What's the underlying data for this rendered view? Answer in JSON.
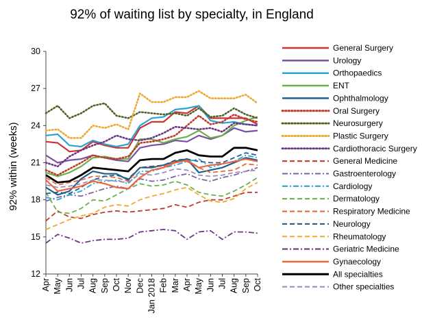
{
  "chart_data": {
    "type": "line",
    "title": "92% of waiting list by specialty, in England",
    "xlabel": "",
    "ylabel": "92% within  (weeks)",
    "ylim": [
      12,
      30
    ],
    "yticks": [
      12,
      15,
      18,
      21,
      24,
      27,
      30
    ],
    "grid": false,
    "legend_position": "right",
    "categories": [
      "Apr",
      "May",
      "Jun",
      "Jul",
      "Aug",
      "Sep",
      "Oct",
      "Nov",
      "Dec",
      "Jan 2018",
      "Feb",
      "Mar",
      "Apr",
      "May",
      "Jun",
      "Jul",
      "Aug",
      "Sep",
      "Oct"
    ],
    "series": [
      {
        "name": "General Surgery",
        "color": "#cc3333",
        "style": "solid",
        "width": 2.2,
        "values": [
          22.7,
          22.6,
          21.9,
          22.0,
          22.7,
          22.4,
          22.2,
          22.2,
          23.8,
          24.3,
          24.3,
          25.1,
          25.0,
          25.6,
          24.6,
          24.6,
          24.6,
          24.6,
          24.1
        ]
      },
      {
        "name": "Urology",
        "color": "#7a4fa0",
        "style": "solid",
        "width": 2.2,
        "values": [
          21.6,
          21.0,
          21.2,
          21.3,
          21.6,
          21.4,
          21.2,
          21.1,
          22.2,
          22.4,
          22.5,
          22.8,
          22.7,
          23.2,
          22.9,
          23.2,
          23.8,
          23.5,
          23.6
        ]
      },
      {
        "name": "Orthopaedics",
        "color": "#29a3d6",
        "style": "solid",
        "width": 2.2,
        "values": [
          23.2,
          23.3,
          22.4,
          22.3,
          22.8,
          22.5,
          22.3,
          22.5,
          24.0,
          24.6,
          24.7,
          25.3,
          25.4,
          25.6,
          24.4,
          24.2,
          24.3,
          24.1,
          24.0
        ]
      },
      {
        "name": "ENT",
        "color": "#6ab04c",
        "style": "solid",
        "width": 2.2,
        "values": [
          20.2,
          19.9,
          20.2,
          20.7,
          21.4,
          21.5,
          21.3,
          21.3,
          22.9,
          22.9,
          22.6,
          22.9,
          23.1,
          23.6,
          23.0,
          23.2,
          24.0,
          24.4,
          24.7
        ]
      },
      {
        "name": "Ophthalmology",
        "color": "#1f5f8b",
        "style": "solid",
        "width": 2.2,
        "values": [
          19.0,
          18.4,
          18.7,
          19.7,
          20.3,
          20.1,
          20.1,
          19.6,
          20.6,
          20.6,
          20.8,
          21.1,
          21.3,
          20.2,
          20.4,
          20.6,
          21.0,
          21.4,
          21.2
        ]
      },
      {
        "name": "Oral Surgery",
        "color": "#c0392b",
        "style": "dot",
        "width": 2.6,
        "values": [
          20.4,
          20.0,
          20.5,
          21.0,
          21.6,
          21.4,
          21.3,
          21.5,
          22.6,
          22.7,
          22.9,
          23.2,
          24.0,
          24.8,
          24.1,
          24.3,
          24.9,
          24.5,
          24.3
        ]
      },
      {
        "name": "Neurosurgery",
        "color": "#4f6228",
        "style": "dot",
        "width": 2.6,
        "values": [
          25.0,
          25.6,
          24.6,
          25.0,
          25.6,
          25.8,
          24.8,
          24.6,
          25.1,
          25.0,
          24.9,
          25.0,
          24.8,
          25.4,
          24.7,
          24.8,
          25.4,
          24.9,
          24.6
        ]
      },
      {
        "name": "Plastic Surgery",
        "color": "#f0a830",
        "style": "dot",
        "width": 2.6,
        "values": [
          23.6,
          23.7,
          23.0,
          23.0,
          24.0,
          23.8,
          24.1,
          23.7,
          26.6,
          25.9,
          25.9,
          26.3,
          26.3,
          26.8,
          26.2,
          26.2,
          26.2,
          26.5,
          25.8
        ]
      },
      {
        "name": "Cardiothoracic Surgery",
        "color": "#6c3483",
        "style": "dot",
        "width": 2.6,
        "values": [
          21.0,
          20.7,
          21.5,
          22.0,
          22.4,
          22.7,
          23.2,
          22.9,
          22.8,
          23.0,
          23.4,
          23.9,
          23.8,
          23.7,
          23.8,
          23.5,
          24.2,
          24.1,
          24.0
        ]
      },
      {
        "name": "General Medicine",
        "color": "#c0392b",
        "style": "dash",
        "width": 1.8,
        "values": [
          16.3,
          17.1,
          16.6,
          16.5,
          16.8,
          17.0,
          17.1,
          17.0,
          17.1,
          17.2,
          17.3,
          17.6,
          17.4,
          17.8,
          18.0,
          18.0,
          18.3,
          18.6,
          18.6
        ]
      },
      {
        "name": "Gastroenterology",
        "color": "#7d5fa5",
        "style": "dashdot",
        "width": 1.8,
        "values": [
          17.9,
          18.2,
          18.4,
          18.3,
          18.6,
          18.9,
          19.1,
          18.9,
          19.7,
          19.5,
          19.6,
          19.9,
          20.1,
          19.7,
          19.5,
          19.8,
          20.0,
          20.3,
          20.6
        ]
      },
      {
        "name": "Cardiology",
        "color": "#29a3d6",
        "style": "dashdot",
        "width": 1.8,
        "values": [
          18.2,
          18.0,
          18.4,
          18.7,
          19.3,
          19.5,
          19.6,
          19.3,
          20.3,
          20.3,
          20.6,
          20.8,
          21.1,
          21.3,
          20.6,
          20.9,
          21.1,
          21.6,
          21.4
        ]
      },
      {
        "name": "Dermatology",
        "color": "#6ab04c",
        "style": "dash",
        "width": 1.8,
        "values": [
          18.6,
          17.0,
          16.9,
          17.3,
          18.0,
          17.9,
          18.4,
          18.9,
          19.3,
          19.1,
          19.2,
          19.5,
          19.2,
          18.6,
          18.4,
          18.3,
          18.7,
          19.2,
          19.8
        ]
      },
      {
        "name": "Respiratory Medicine",
        "color": "#e8673c",
        "style": "dash",
        "width": 1.8,
        "values": [
          19.8,
          19.2,
          19.4,
          19.6,
          19.9,
          19.9,
          19.8,
          19.5,
          20.6,
          20.7,
          20.7,
          21.1,
          21.1,
          20.6,
          20.2,
          20.3,
          20.4,
          20.9,
          20.8
        ]
      },
      {
        "name": "Neurology",
        "color": "#1f5f8b",
        "style": "dash",
        "width": 1.8,
        "values": [
          18.5,
          18.6,
          18.5,
          19.0,
          19.6,
          19.9,
          20.0,
          19.7,
          20.6,
          20.7,
          20.8,
          21.2,
          21.3,
          21.1,
          21.0,
          21.0,
          21.4,
          21.8,
          21.6
        ]
      },
      {
        "name": "Rheumatology",
        "color": "#f0a830",
        "style": "dash",
        "width": 1.8,
        "values": [
          15.6,
          16.0,
          16.4,
          16.7,
          16.9,
          17.4,
          17.6,
          17.5,
          18.0,
          18.3,
          18.5,
          18.8,
          19.0,
          18.4,
          17.9,
          17.8,
          18.1,
          18.9,
          19.4
        ]
      },
      {
        "name": "Geriatric Medicine",
        "color": "#6c3483",
        "style": "dashdot",
        "width": 1.8,
        "values": [
          14.5,
          15.2,
          14.9,
          14.5,
          14.7,
          14.8,
          14.8,
          14.9,
          15.4,
          15.5,
          15.6,
          15.5,
          14.8,
          15.4,
          15.5,
          14.8,
          15.4,
          15.4,
          15.3
        ]
      },
      {
        "name": "Gynaecology",
        "color": "#e8673c",
        "style": "solid",
        "width": 2.2,
        "values": [
          19.6,
          18.7,
          18.9,
          19.1,
          19.5,
          19.3,
          19.0,
          18.9,
          19.8,
          20.4,
          20.6,
          21.0,
          21.2,
          20.6,
          20.8,
          20.9,
          21.1,
          21.3,
          21.1
        ]
      },
      {
        "name": "All specialties",
        "color": "#000000",
        "style": "solid",
        "width": 2.8,
        "values": [
          20.0,
          19.4,
          19.5,
          20.0,
          20.6,
          20.5,
          20.4,
          20.3,
          21.2,
          21.3,
          21.3,
          21.8,
          22.0,
          21.6,
          21.5,
          21.5,
          22.2,
          22.2,
          22.0
        ]
      },
      {
        "name": "Other specialties",
        "color": "#9b8fb8",
        "style": "dash",
        "width": 1.8,
        "values": [
          19.2,
          19.0,
          19.1,
          19.3,
          19.6,
          19.6,
          19.5,
          19.4,
          20.1,
          20.0,
          20.2,
          20.5,
          20.4,
          20.0,
          19.9,
          20.0,
          20.2,
          20.3,
          20.4
        ]
      }
    ]
  }
}
